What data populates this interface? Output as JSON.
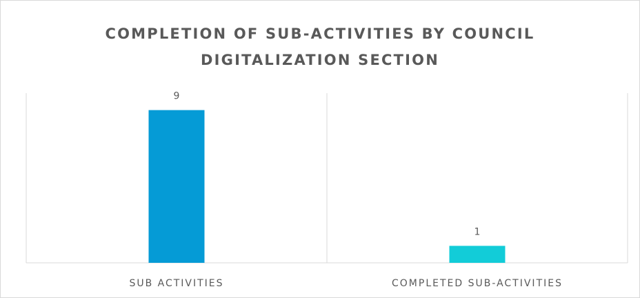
{
  "chart_data": {
    "type": "bar",
    "title": "COMPLETION OF SUB-ACTIVITIES BY COUNCIL DIGITALIZATION SECTION",
    "categories": [
      "SUB ACTIVITIES",
      "COMPLETED SUB-ACTIVITIES"
    ],
    "values": [
      9,
      1
    ],
    "colors": [
      "#059bd6",
      "#12ccd8"
    ],
    "ylim": [
      0,
      10
    ]
  }
}
